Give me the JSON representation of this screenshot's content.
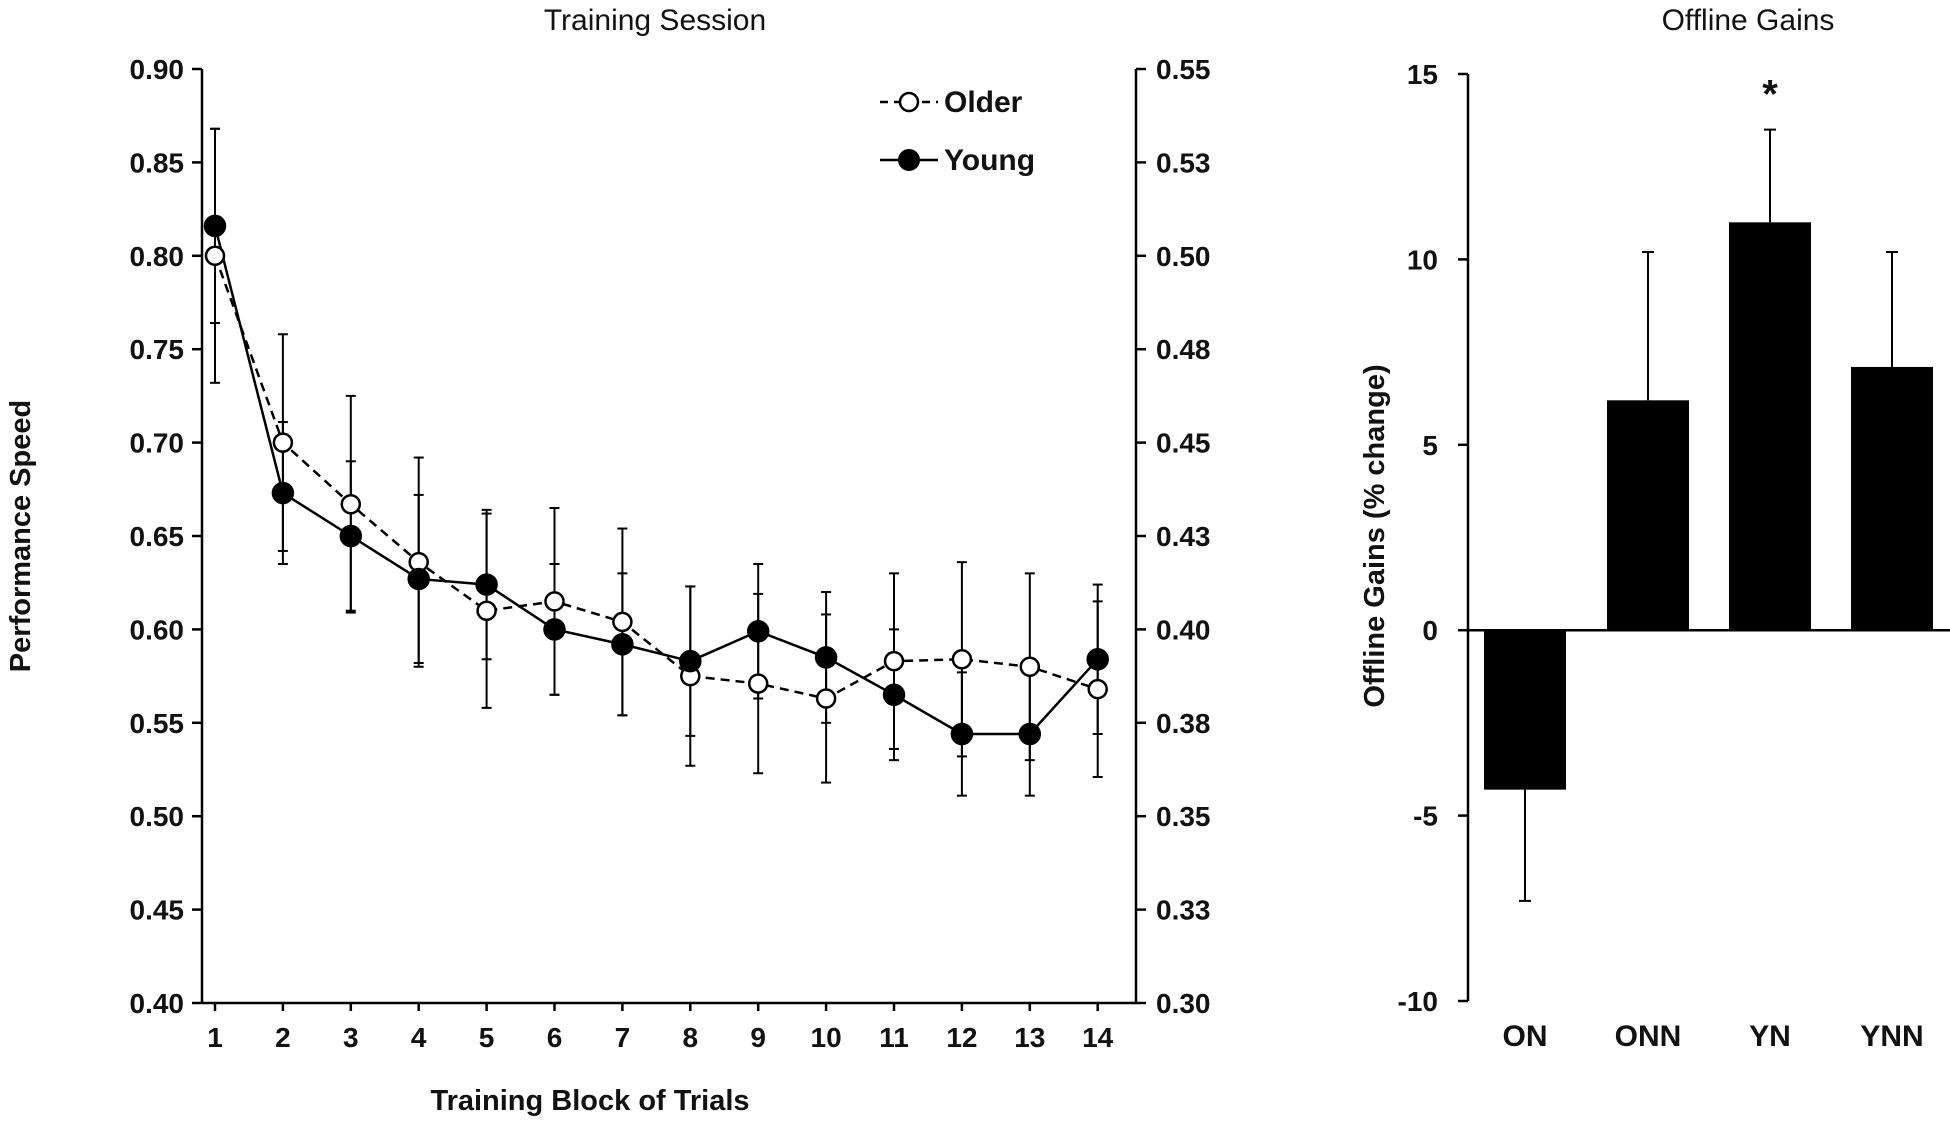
{
  "chart_data": [
    {
      "type": "line",
      "title": "Training Session",
      "xlabel": "Training Block of Trials",
      "ylabel": "Performance Speed",
      "x": [
        1,
        2,
        3,
        4,
        5,
        6,
        7,
        8,
        9,
        10,
        11,
        12,
        13,
        14
      ],
      "x_tick_labels": [
        "1",
        "2",
        "3",
        "4",
        "5",
        "6",
        "7",
        "8",
        "9",
        "10",
        "11",
        "12",
        "13",
        "14"
      ],
      "ylim": [
        0.4,
        0.9
      ],
      "y_tick_labels": [
        "0.90",
        "0.85",
        "0.80",
        "0.75",
        "0.70",
        "0.65",
        "0.60",
        "0.55",
        "0.50",
        "0.45",
        "0.40"
      ],
      "y_ticks": [
        0.9,
        0.85,
        0.8,
        0.75,
        0.7,
        0.65,
        0.6,
        0.55,
        0.5,
        0.45,
        0.4
      ],
      "y2lim": [
        0.3,
        0.55
      ],
      "y2_tick_labels": [
        "0.55",
        "0.53",
        "0.50",
        "0.48",
        "0.45",
        "0.43",
        "0.40",
        "0.38",
        "0.35",
        "0.33",
        "0.30"
      ],
      "legend_position": "top-right",
      "series": [
        {
          "name": "Older",
          "legend_label": "-○-Older",
          "style": "dashed-open",
          "values": [
            0.8,
            0.7,
            0.667,
            0.636,
            0.61,
            0.615,
            0.604,
            0.575,
            0.571,
            0.563,
            0.583,
            0.584,
            0.58,
            0.568
          ],
          "error": [
            0.068,
            0.058,
            0.058,
            0.056,
            0.052,
            0.05,
            0.05,
            0.048,
            0.048,
            0.045,
            0.047,
            0.052,
            0.05,
            0.047
          ]
        },
        {
          "name": "Young",
          "legend_label": "-●-Young",
          "style": "solid-filled",
          "values": [
            0.816,
            0.673,
            0.65,
            0.627,
            0.624,
            0.6,
            0.592,
            0.583,
            0.599,
            0.585,
            0.565,
            0.544,
            0.544,
            0.584
          ],
          "error": [
            0.052,
            0.038,
            0.04,
            0.045,
            0.04,
            0.035,
            0.038,
            0.04,
            0.036,
            0.035,
            0.035,
            0.033,
            0.033,
            0.04
          ]
        }
      ]
    },
    {
      "type": "bar",
      "title": "Offline Gains",
      "xlabel": "",
      "ylabel": "Offline Gains (% change)",
      "categories": [
        "ON",
        "ONN",
        "YN",
        "YNN"
      ],
      "values": [
        -4.3,
        6.2,
        11.0,
        7.1
      ],
      "error": [
        3.0,
        4.0,
        2.5,
        3.1
      ],
      "ylim": [
        -10,
        15
      ],
      "y_ticks": [
        15,
        10,
        5,
        0,
        -5,
        -10
      ],
      "y_tick_labels": [
        "15",
        "10",
        "5",
        "0",
        "-5",
        "-10"
      ],
      "annotations": [
        {
          "category": "YN",
          "text": "*"
        }
      ]
    }
  ]
}
